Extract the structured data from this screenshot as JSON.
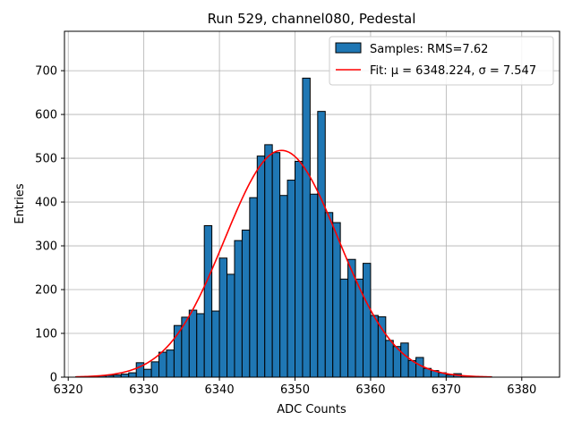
{
  "chart_data": {
    "type": "bar",
    "title": "Run 529, channel080, Pedestal",
    "xlabel": "ADC Counts",
    "ylabel": "Entries",
    "xlim": [
      6319.5,
      6385
    ],
    "ylim": [
      0,
      790
    ],
    "xticks": [
      6320,
      6330,
      6340,
      6350,
      6360,
      6370,
      6380
    ],
    "yticks": [
      0,
      100,
      200,
      300,
      400,
      500,
      600,
      700
    ],
    "grid": true,
    "legend_position": "top-right",
    "bin_width": 1,
    "bins_left": [
      6321,
      6322,
      6323,
      6324,
      6325,
      6326,
      6327,
      6328,
      6329,
      6330,
      6331,
      6332,
      6333,
      6334,
      6335,
      6336,
      6337,
      6338,
      6339,
      6340,
      6341,
      6342,
      6343,
      6344,
      6345,
      6346,
      6347,
      6348,
      6349,
      6350,
      6351,
      6352,
      6353,
      6354,
      6355,
      6356,
      6357,
      6358,
      6359,
      6360,
      6361,
      6362,
      6363,
      6364,
      6365,
      6366,
      6367,
      6368,
      6369,
      6370,
      6371,
      6372,
      6373,
      6374,
      6375
    ],
    "counts": [
      1,
      1,
      2,
      3,
      4,
      5,
      7,
      10,
      33,
      18,
      35,
      57,
      62,
      118,
      137,
      153,
      145,
      346,
      151,
      272,
      235,
      312,
      336,
      410,
      505,
      531,
      513,
      415,
      450,
      493,
      683,
      418,
      607,
      376,
      353,
      224,
      269,
      224,
      260,
      141,
      138,
      84,
      70,
      78,
      38,
      45,
      20,
      15,
      10,
      5,
      8,
      3,
      2,
      1,
      1
    ],
    "series": [
      {
        "name": "Samples: RMS=7.62",
        "kind": "histogram",
        "color": "#1f77b4"
      },
      {
        "name": "Fit: μ = 6348.224, σ = 7.547",
        "kind": "gaussian-fit",
        "color": "#ff0000",
        "mu": 6348.224,
        "sigma": 7.547,
        "amplitude": 518,
        "x_range": [
          6321,
          6376
        ]
      }
    ]
  }
}
